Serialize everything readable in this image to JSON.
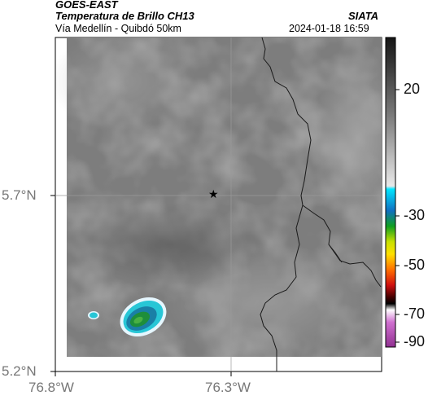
{
  "header": {
    "satellite": "GOES-EAST",
    "product": "Temperatura de Brillo CH13",
    "region": "Vía Medellín - Quibdó 50km",
    "brand": "SIATA",
    "timestamp": "2024-01-18 16:59"
  },
  "axes": {
    "y_labels": [
      "5.7°N",
      "5.2°N"
    ],
    "x_labels": [
      "76.8°W",
      "76.3°W"
    ]
  },
  "colorbar": {
    "ticks": [
      "20",
      "-30",
      "-50",
      "-70",
      "-90"
    ]
  },
  "marker": {
    "symbol": "★"
  },
  "colors": {
    "background_gray": "#7d7d7d",
    "storm_core": "#2a9a3a",
    "storm_outer": "#1fb9c6",
    "border_line": "#1a1a1a"
  }
}
